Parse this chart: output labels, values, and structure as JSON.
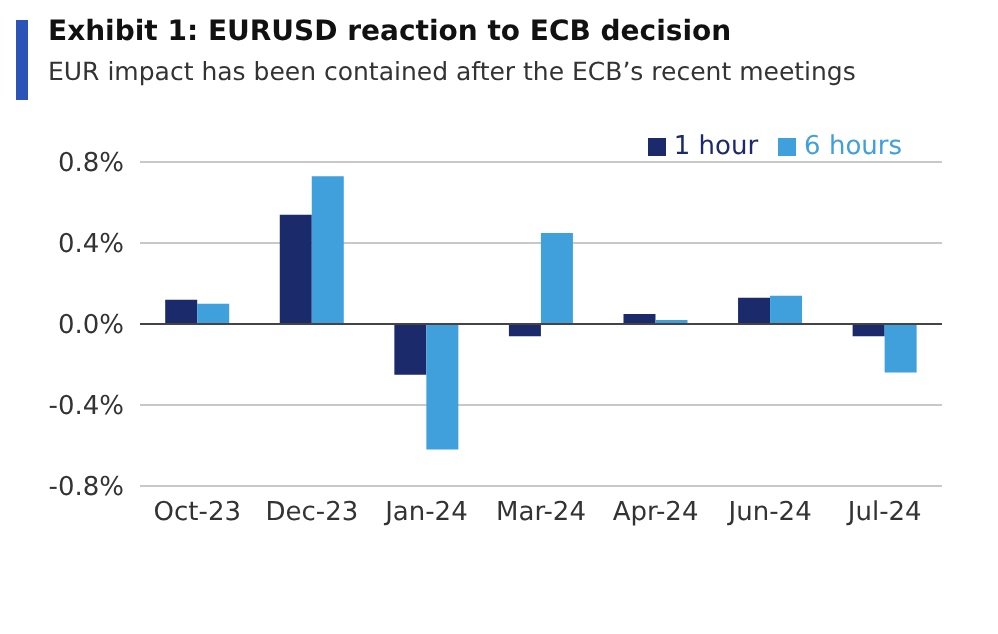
{
  "chart_data": {
    "type": "bar",
    "title": "Exhibit 1: EURUSD reaction to ECB decision",
    "subtitle": "EUR impact has been contained after the ECB’s recent meetings",
    "categories": [
      "Oct-23",
      "Dec-23",
      "Jan-24",
      "Mar-24",
      "Apr-24",
      "Jun-24",
      "Jul-24"
    ],
    "series": [
      {
        "name": "1 hour",
        "color": "#1b2a6b",
        "values": [
          0.12,
          0.54,
          -0.25,
          -0.06,
          0.05,
          0.13,
          -0.06
        ]
      },
      {
        "name": "6 hours",
        "color": "#3fa0dc",
        "values": [
          0.1,
          0.73,
          -0.62,
          0.45,
          0.02,
          0.14,
          -0.24
        ]
      }
    ],
    "ylim": [
      -0.8,
      0.8
    ],
    "yticks": [
      {
        "value": -0.8,
        "label": "-0.8%"
      },
      {
        "value": -0.4,
        "label": "-0.4%"
      },
      {
        "value": 0,
        "label": "0.0%"
      },
      {
        "value": 0.4,
        "label": "0.4%"
      },
      {
        "value": 0.8,
        "label": "0.8%"
      }
    ],
    "grid": "y",
    "legend": "top right"
  }
}
